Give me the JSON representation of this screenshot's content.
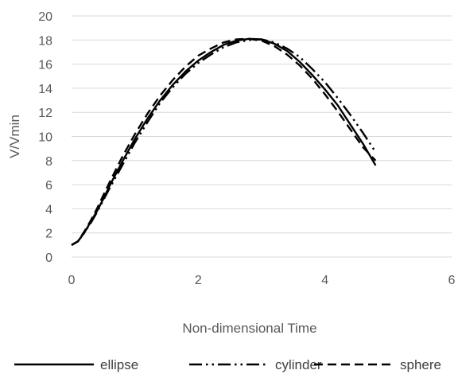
{
  "chart_data": {
    "type": "line",
    "title": "",
    "xlabel": "Non-dimensional Time",
    "ylabel": "V/Vmin",
    "xlim": [
      0,
      6
    ],
    "ylim": [
      0,
      20
    ],
    "x_ticks": [
      0,
      2,
      4,
      6
    ],
    "y_ticks": [
      0,
      2,
      4,
      6,
      8,
      10,
      12,
      14,
      16,
      18,
      20
    ],
    "grid": "horizontal",
    "legend_position": "bottom",
    "series": [
      {
        "name": "ellipse",
        "line_style": "solid",
        "color": "#000000",
        "x": [
          0,
          0.1,
          0.2,
          0.3,
          0.4,
          0.5,
          0.6,
          0.8,
          1.0,
          1.2,
          1.4,
          1.6,
          1.8,
          2.0,
          2.2,
          2.4,
          2.6,
          2.8,
          3.0,
          3.2,
          3.4,
          3.6,
          3.8,
          4.0,
          4.2,
          4.4,
          4.6,
          4.8
        ],
        "y": [
          1.0,
          1.3,
          2.0,
          2.9,
          3.8,
          4.8,
          5.9,
          7.9,
          9.8,
          11.5,
          13.0,
          14.3,
          15.4,
          16.3,
          17.0,
          17.6,
          17.95,
          18.1,
          18.05,
          17.7,
          17.1,
          16.2,
          15.1,
          13.9,
          12.6,
          11.0,
          9.4,
          7.6
        ]
      },
      {
        "name": "cylinder",
        "line_style": "long-dash-dot-dot",
        "color": "#000000",
        "x": [
          0,
          0.1,
          0.2,
          0.3,
          0.4,
          0.5,
          0.6,
          0.8,
          1.0,
          1.2,
          1.4,
          1.6,
          1.8,
          2.0,
          2.2,
          2.4,
          2.6,
          2.8,
          3.0,
          3.2,
          3.4,
          3.6,
          3.8,
          4.0,
          4.2,
          4.4,
          4.6,
          4.8
        ],
        "y": [
          1.0,
          1.3,
          2.0,
          2.8,
          3.7,
          4.7,
          5.7,
          7.6,
          9.5,
          11.2,
          12.8,
          14.1,
          15.2,
          16.1,
          16.8,
          17.4,
          17.8,
          18.0,
          18.05,
          17.8,
          17.3,
          16.6,
          15.6,
          14.5,
          13.2,
          11.8,
          10.3,
          8.7
        ]
      },
      {
        "name": "sphere",
        "line_style": "dashed",
        "color": "#000000",
        "x": [
          0,
          0.1,
          0.2,
          0.3,
          0.4,
          0.5,
          0.6,
          0.8,
          1.0,
          1.2,
          1.4,
          1.6,
          1.8,
          2.0,
          2.2,
          2.4,
          2.6,
          2.8,
          3.0,
          3.2,
          3.4,
          3.6,
          3.8,
          4.0,
          4.2,
          4.4,
          4.6,
          4.8
        ],
        "y": [
          1.0,
          1.3,
          2.1,
          3.0,
          4.0,
          5.1,
          6.2,
          8.3,
          10.2,
          11.9,
          13.4,
          14.7,
          15.8,
          16.7,
          17.3,
          17.8,
          18.05,
          18.1,
          17.95,
          17.5,
          16.8,
          15.9,
          14.8,
          13.5,
          12.1,
          10.6,
          9.1,
          8.0
        ]
      }
    ]
  }
}
